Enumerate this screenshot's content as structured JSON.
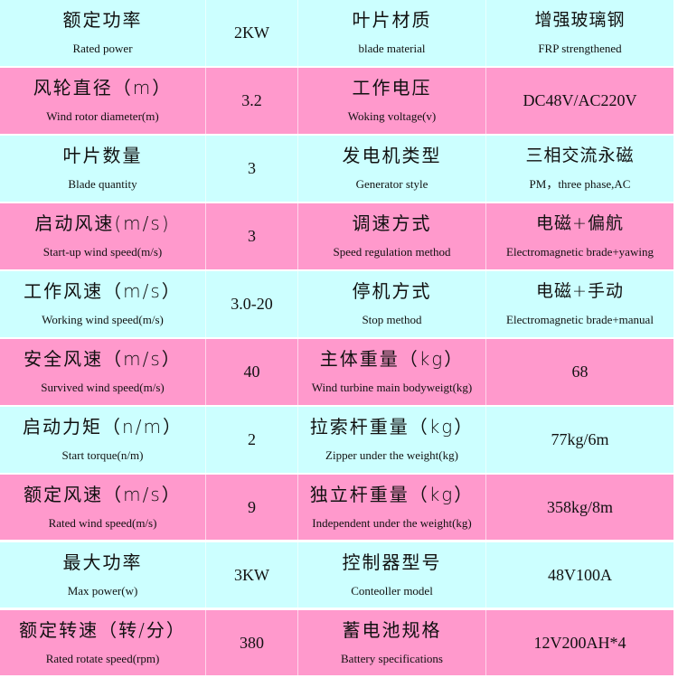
{
  "colors": {
    "cyan": "#ccffff",
    "pink": "#ff99cc"
  },
  "rows": [
    {
      "zh1": "额定功率",
      "en1": "Rated power",
      "val": "2KW",
      "zh2": "叶片材质",
      "en2": "blade material",
      "zh3": "增强玻璃钢",
      "en3": "FRP strengthened"
    },
    {
      "zh1": "风轮直径（m）",
      "en1": "Wind rotor diameter(m)",
      "val": "3.2",
      "zh2": "工作电压",
      "en2": "Woking voltage(v)",
      "zh3": "",
      "en3": "DC48V/AC220V"
    },
    {
      "zh1": "叶片数量",
      "en1": "Blade quantity",
      "val": "3",
      "zh2": "发电机类型",
      "en2": "Generator style",
      "zh3": "三相交流永磁",
      "en3": "PM，three phase,AC"
    },
    {
      "zh1": "启动风速(m/s)",
      "en1": "Start-up wind speed(m/s)",
      "val": "3",
      "zh2": "调速方式",
      "en2": "Speed regulation method",
      "zh3": "电磁+偏航",
      "en3": "Electromagnetic brade+yawing"
    },
    {
      "zh1": "工作风速（m/s）",
      "en1": "Working wind speed(m/s)",
      "val": "3.0-20",
      "zh2": "停机方式",
      "en2": "Stop method",
      "zh3": "电磁+手动",
      "en3": "Electromagnetic brade+manual"
    },
    {
      "zh1": "安全风速（m/s）",
      "en1": "Survived wind speed(m/s)",
      "val": "40",
      "zh2": "主体重量（kg）",
      "en2": "Wind turbine main bodyweigt(kg)",
      "zh3": "",
      "en3": "68"
    },
    {
      "zh1": "启动力矩（n/m）",
      "en1": "Start torque(n/m)",
      "val": "2",
      "zh2": "拉索杆重量（kg）",
      "en2": "Zipper under the weight(kg)",
      "zh3": "",
      "en3": "77kg/6m"
    },
    {
      "zh1": "额定风速（m/s）",
      "en1": "Rated wind speed(m/s)",
      "val": "9",
      "zh2": "独立杆重量（kg）",
      "en2": "Independent under the weight(kg)",
      "zh3": "",
      "en3": "358kg/8m"
    },
    {
      "zh1": "最大功率",
      "en1": "Max power(w)",
      "val": "3KW",
      "zh2": "控制器型号",
      "en2": "Conteoller model",
      "zh3": "",
      "en3": "48V100A"
    },
    {
      "zh1": "额定转速（转/分）",
      "en1": "Rated rotate speed(rpm)",
      "val": "380",
      "zh2": "蓄电池规格",
      "en2": "Battery specifications",
      "zh3": "",
      "en3": "12V200AH*4"
    }
  ]
}
